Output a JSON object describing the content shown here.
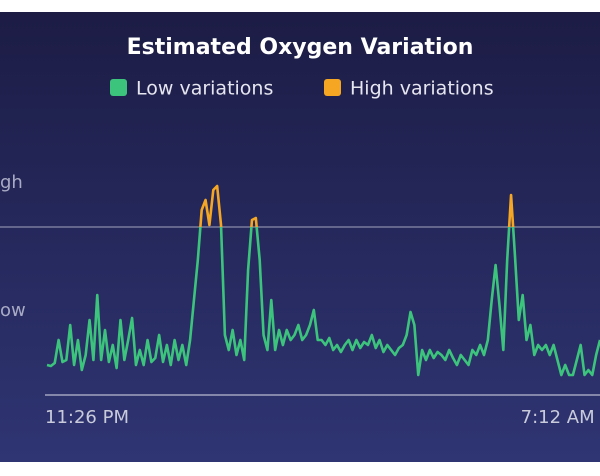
{
  "chart_data": {
    "type": "line",
    "title": "Estimated Oxygen Variation",
    "legend": [
      {
        "name": "Low variations",
        "color": "#3cc47c"
      },
      {
        "name": "High variations",
        "color": "#f5a623"
      }
    ],
    "threshold": 84,
    "ylim": [
      0,
      120
    ],
    "yticks": [
      {
        "value": 106,
        "label": "gh"
      },
      {
        "value": 42,
        "label": "ow"
      }
    ],
    "categories": [
      "11:26 PM",
      null,
      null,
      null,
      null,
      null,
      null,
      null,
      null,
      null,
      null,
      null,
      null,
      null,
      null,
      null,
      null,
      null,
      null,
      null,
      null,
      null,
      null,
      null,
      null,
      null,
      null,
      null,
      null,
      null,
      null,
      null,
      null,
      null,
      null,
      null,
      null,
      null,
      null,
      null,
      null,
      null,
      null,
      null,
      null,
      null,
      null,
      null,
      null,
      null,
      null,
      null,
      null,
      null,
      null,
      null,
      null,
      null,
      null,
      null,
      null,
      null,
      null,
      null,
      null,
      null,
      null,
      null,
      null,
      null,
      null,
      null,
      null,
      null,
      null,
      null,
      null,
      null,
      null,
      null,
      null,
      null,
      null,
      null,
      null,
      null,
      null,
      null,
      null,
      null,
      null,
      null,
      null,
      null,
      null,
      null,
      null,
      null,
      null,
      null,
      null,
      null,
      null,
      null,
      null,
      null,
      null,
      null,
      null,
      null,
      null,
      null,
      null,
      null,
      null,
      null,
      null,
      null,
      null,
      null,
      null,
      null,
      null,
      "7:12 AM",
      null,
      null,
      null,
      null,
      null,
      null,
      null,
      null,
      null,
      null,
      null,
      null,
      null,
      null,
      null,
      null,
      null,
      null,
      null,
      null
    ],
    "values": [
      15,
      14.5,
      16,
      27.5,
      16.5,
      17.5,
      35,
      15,
      27.5,
      12.5,
      20,
      37.5,
      17.5,
      50,
      17.5,
      32.5,
      16.5,
      25,
      13.5,
      37.5,
      17.5,
      27.5,
      38.5,
      15,
      22.5,
      15,
      27.5,
      16.5,
      18.5,
      30,
      16.5,
      25,
      15,
      27.5,
      17.5,
      25,
      15,
      27.5,
      47.5,
      67.5,
      92.5,
      97.5,
      85,
      102.5,
      104.5,
      85,
      30,
      22.5,
      32.5,
      20,
      27.5,
      17.5,
      62.5,
      87.5,
      88.5,
      67.5,
      30,
      22.5,
      47.5,
      22.5,
      32.5,
      25,
      32.5,
      27.5,
      30,
      35,
      27.5,
      30,
      35,
      42.5,
      27.5,
      27.5,
      25,
      28.5,
      22.5,
      25,
      21.5,
      25,
      27.5,
      22.5,
      27.5,
      23.5,
      26.5,
      25,
      30,
      23.5,
      27.5,
      21.5,
      25,
      22.5,
      20,
      23.5,
      25,
      30,
      41.5,
      35,
      10,
      22.5,
      17.5,
      22.5,
      18.5,
      21.5,
      20,
      17.5,
      22.5,
      18.5,
      15,
      20,
      17.5,
      15,
      22.5,
      20,
      25,
      20,
      27.5,
      47.5,
      65,
      45,
      22.5,
      67.5,
      100,
      70,
      37.5,
      50,
      27.5,
      35,
      20,
      25,
      22.5,
      25,
      20,
      25,
      17.5,
      10,
      15,
      10,
      10,
      17.5,
      25,
      10,
      12.5,
      10,
      20,
      27.5
    ]
  }
}
